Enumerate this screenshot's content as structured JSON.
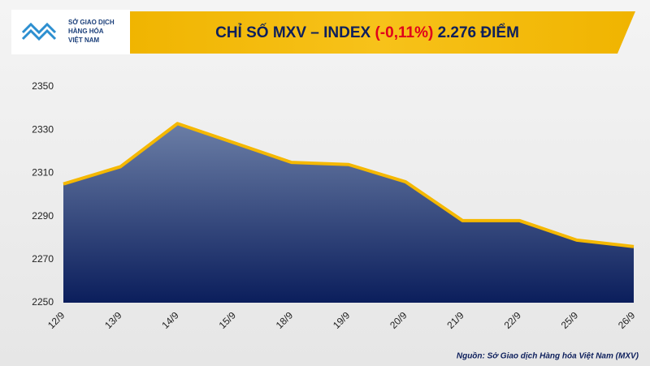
{
  "chart_data": {
    "type": "area",
    "title_parts": [
      "CHỈ SỐ MXV – INDEX",
      "(-0,11%)",
      "2.276 ĐIỂM"
    ],
    "logo_lines": [
      "SỞ GIAO DỊCH",
      "HÀNG HÓA",
      "VIỆT NAM"
    ],
    "source": "Nguồn: Sở Giao dịch Hàng hóa Việt Nam (MXV)",
    "categories": [
      "12/9",
      "13/9",
      "14/9",
      "15/9",
      "18/9",
      "19/9",
      "20/9",
      "21/9",
      "22/9",
      "25/9",
      "26/9"
    ],
    "values": [
      2305,
      2313,
      2333,
      2324,
      2315,
      2314,
      2306,
      2288,
      2288,
      2279,
      2276
    ],
    "color": "#f5b800",
    "ylim": [
      2250,
      2350
    ],
    "yticks": [
      2250,
      2270,
      2290,
      2310,
      2330,
      2350
    ],
    "grid": false
  }
}
